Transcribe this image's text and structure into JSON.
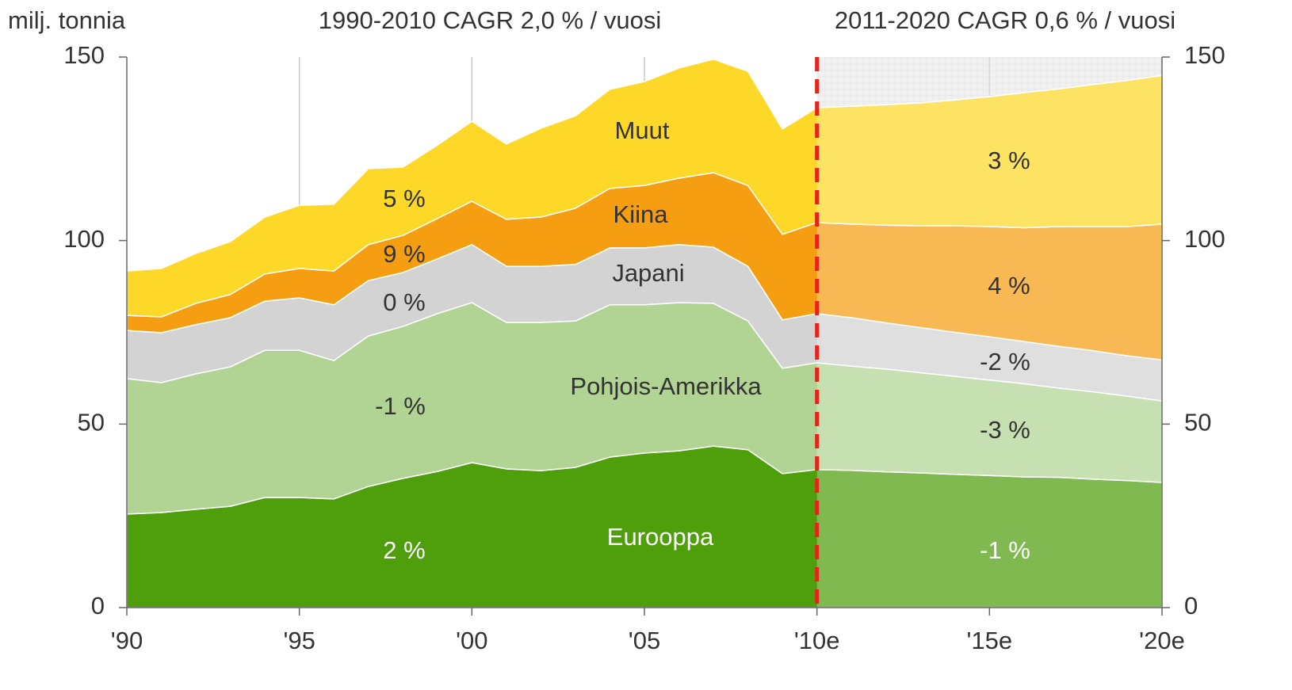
{
  "chart_data": {
    "type": "stacked_area",
    "ylabel": "milj. tonnia",
    "subtitles": [
      "1990-2010 CAGR 2,0 % / vuosi",
      "2011-2020 CAGR 0,6 % / vuosi"
    ],
    "x": [
      1990,
      1991,
      1992,
      1993,
      1994,
      1995,
      1996,
      1997,
      1998,
      1999,
      2000,
      2001,
      2002,
      2003,
      2004,
      2005,
      2006,
      2007,
      2008,
      2009,
      2010,
      2011,
      2012,
      2013,
      2014,
      2015,
      2016,
      2017,
      2018,
      2019,
      2020
    ],
    "xlim": [
      1990,
      2020
    ],
    "xticks": [
      {
        "value": 1990,
        "label": "'90"
      },
      {
        "value": 1995,
        "label": "'95"
      },
      {
        "value": 2000,
        "label": "'00"
      },
      {
        "value": 2005,
        "label": "'05"
      },
      {
        "value": 2010,
        "label": "'10e"
      },
      {
        "value": 2015,
        "label": "'15e"
      },
      {
        "value": 2020,
        "label": "'20e"
      }
    ],
    "ylim": [
      0,
      150
    ],
    "yticks": [
      0,
      50,
      100,
      150
    ],
    "forecast_start": 2010,
    "series": [
      {
        "name": "Eurooppa",
        "color": "#4f9e0c",
        "values": [
          25.5,
          25.9,
          26.8,
          27.6,
          30.0,
          30.0,
          29.6,
          33.0,
          35.2,
          37.1,
          39.5,
          37.8,
          37.3,
          38.2,
          41.0,
          42.1,
          42.7,
          44.0,
          43.0,
          36.5,
          37.6,
          37.4,
          37.0,
          36.7,
          36.3,
          36.0,
          35.6,
          35.5,
          35.0,
          34.6,
          34.1
        ]
      },
      {
        "name": "Pohjois-Amerikka",
        "color": "#b1d494",
        "values": [
          36.9,
          35.4,
          36.9,
          38.0,
          40.1,
          40.1,
          37.7,
          41.0,
          41.4,
          43.0,
          43.6,
          39.9,
          40.4,
          39.9,
          41.5,
          40.4,
          40.4,
          38.9,
          35.1,
          28.7,
          29.1,
          28.4,
          28.0,
          27.3,
          26.7,
          26.0,
          25.4,
          24.3,
          23.8,
          23.0,
          22.2
        ]
      },
      {
        "name": "Japani",
        "color": "#d3d3d3",
        "values": [
          13.1,
          13.6,
          13.4,
          13.4,
          13.4,
          14.3,
          15.2,
          15.1,
          14.7,
          14.9,
          15.8,
          15.3,
          15.3,
          15.4,
          15.5,
          15.5,
          15.8,
          15.3,
          14.9,
          13.2,
          13.4,
          13.2,
          12.6,
          12.3,
          12.0,
          11.8,
          11.5,
          11.4,
          11.2,
          11.0,
          11.2
        ]
      },
      {
        "name": "Kiina",
        "color": "#f59e12",
        "values": [
          4.1,
          4.3,
          5.8,
          6.3,
          7.4,
          8.0,
          9.2,
          9.8,
          10.1,
          11.0,
          11.8,
          12.8,
          13.4,
          15.3,
          16.2,
          17.0,
          18.1,
          20.3,
          22.0,
          23.3,
          24.8,
          25.5,
          26.6,
          27.7,
          29.0,
          30.0,
          31.0,
          32.6,
          33.8,
          35.2,
          37.0
        ]
      },
      {
        "name": "Muut",
        "color": "#fdd829",
        "values": [
          12.1,
          13.2,
          13.6,
          14.4,
          15.5,
          17.2,
          18.2,
          20.7,
          18.6,
          20.0,
          21.8,
          20.5,
          24.2,
          25.2,
          27.0,
          28.3,
          30.0,
          30.9,
          31.1,
          28.7,
          31.3,
          32.1,
          32.8,
          33.5,
          34.3,
          35.4,
          36.8,
          37.5,
          38.7,
          39.8,
          40.5
        ]
      }
    ],
    "annotations": [
      "5 %",
      "9 %",
      "0 %",
      "-1 %",
      "2 %",
      "3 %",
      "4 %",
      "-2 %",
      "-3 %",
      "-1 %"
    ]
  }
}
